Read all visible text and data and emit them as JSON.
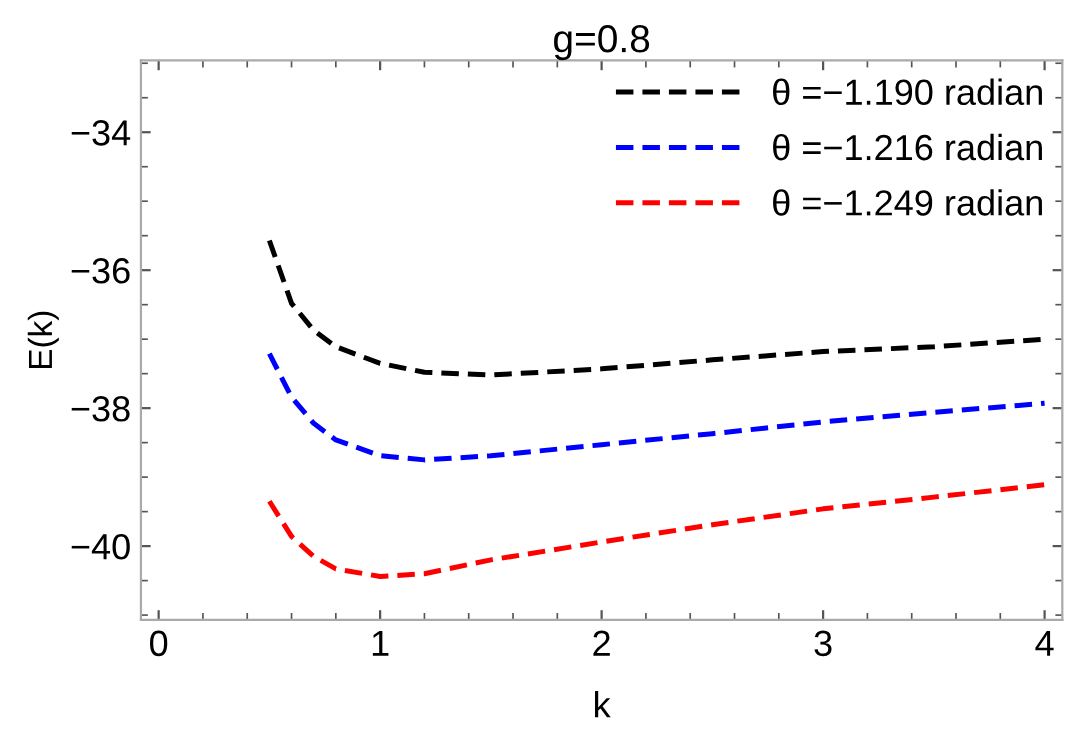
{
  "chart_data": {
    "type": "line",
    "title": "g=0.8",
    "xlabel": "k",
    "ylabel": "E(k)",
    "x": [
      0.5,
      0.6,
      0.7,
      0.8,
      1.0,
      1.2,
      1.5,
      2.0,
      2.5,
      3.0,
      3.5,
      4.0
    ],
    "series": [
      {
        "name": "θ =−1.190 radian",
        "color": "#000000",
        "values": [
          -35.57,
          -36.48,
          -36.87,
          -37.11,
          -37.35,
          -37.48,
          -37.52,
          -37.43,
          -37.3,
          -37.18,
          -37.11,
          -37.0
        ]
      },
      {
        "name": "θ =−1.216 radian",
        "color": "#0000ff",
        "values": [
          -37.21,
          -37.84,
          -38.22,
          -38.46,
          -38.69,
          -38.75,
          -38.69,
          -38.53,
          -38.37,
          -38.2,
          -38.06,
          -37.93
        ]
      },
      {
        "name": "θ =−1.249 radian",
        "color": "#ff0000",
        "values": [
          -39.35,
          -39.86,
          -40.15,
          -40.33,
          -40.44,
          -40.4,
          -40.2,
          -39.94,
          -39.69,
          -39.46,
          -39.29,
          -39.11
        ]
      }
    ],
    "xlim": [
      -0.08,
      4.08
    ],
    "ylim": [
      -41.07,
      -32.96
    ],
    "xticks": [
      0,
      1,
      2,
      3,
      4
    ],
    "yticks": [
      -40,
      -38,
      -36,
      -34
    ],
    "line_style": "dashed",
    "marker": "none",
    "grid": false,
    "legend": "top right"
  }
}
